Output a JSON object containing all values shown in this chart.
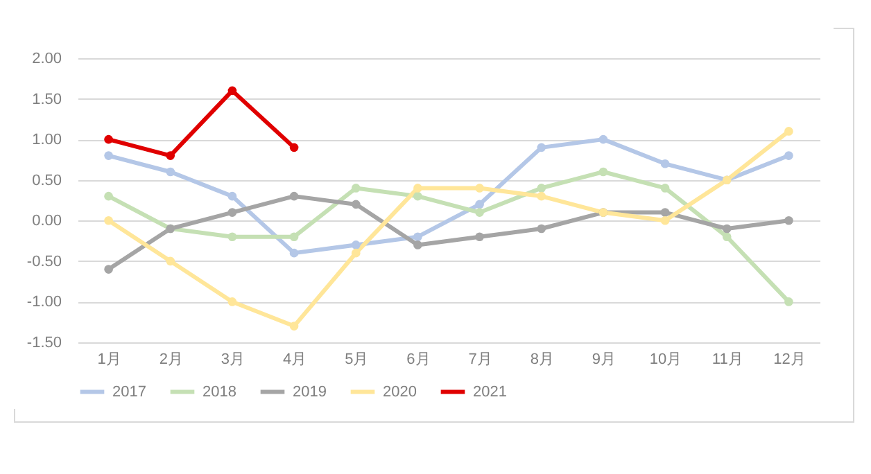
{
  "chart_data": {
    "type": "line",
    "categories": [
      "1月",
      "2月",
      "3月",
      "4月",
      "5月",
      "6月",
      "7月",
      "8月",
      "9月",
      "10月",
      "11月",
      "12月"
    ],
    "series": [
      {
        "name": "2017",
        "color": "#b4c7e7",
        "values": [
          0.8,
          0.6,
          0.3,
          -0.4,
          -0.3,
          -0.2,
          0.2,
          0.9,
          1.0,
          0.7,
          0.5,
          0.8
        ]
      },
      {
        "name": "2018",
        "color": "#c5e0b4",
        "values": [
          0.3,
          -0.1,
          -0.2,
          -0.2,
          0.4,
          0.3,
          0.1,
          0.4,
          0.6,
          0.4,
          -0.2,
          -1.0
        ]
      },
      {
        "name": "2019",
        "color": "#a5a5a5",
        "values": [
          -0.6,
          -0.1,
          0.1,
          0.3,
          0.2,
          -0.3,
          -0.2,
          -0.1,
          0.1,
          0.1,
          -0.1,
          0.0
        ]
      },
      {
        "name": "2020",
        "color": "#ffe699",
        "values": [
          0.0,
          -0.5,
          -1.0,
          -1.3,
          -0.4,
          0.4,
          0.4,
          0.3,
          0.1,
          0.0,
          0.5,
          1.1
        ]
      },
      {
        "name": "2021",
        "color": "#e00000",
        "values": [
          1.0,
          0.8,
          1.6,
          0.9,
          null,
          null,
          null,
          null,
          null,
          null,
          null,
          null
        ]
      }
    ],
    "ylim": [
      -1.5,
      2.0
    ],
    "yticks": [
      {
        "value": -1.5,
        "label": "-1.50"
      },
      {
        "value": -1.0,
        "label": "-1.00"
      },
      {
        "value": -0.5,
        "label": "-0.50"
      },
      {
        "value": 0,
        "label": "0.00"
      },
      {
        "value": 0.5,
        "label": "0.50"
      },
      {
        "value": 1.0,
        "label": "1.00"
      },
      {
        "value": 1.5,
        "label": "1.50"
      },
      {
        "value": 2.0,
        "label": "2.00"
      }
    ],
    "grid": "y",
    "legend": "bottom",
    "marker": "circle",
    "line_style": "solid"
  }
}
